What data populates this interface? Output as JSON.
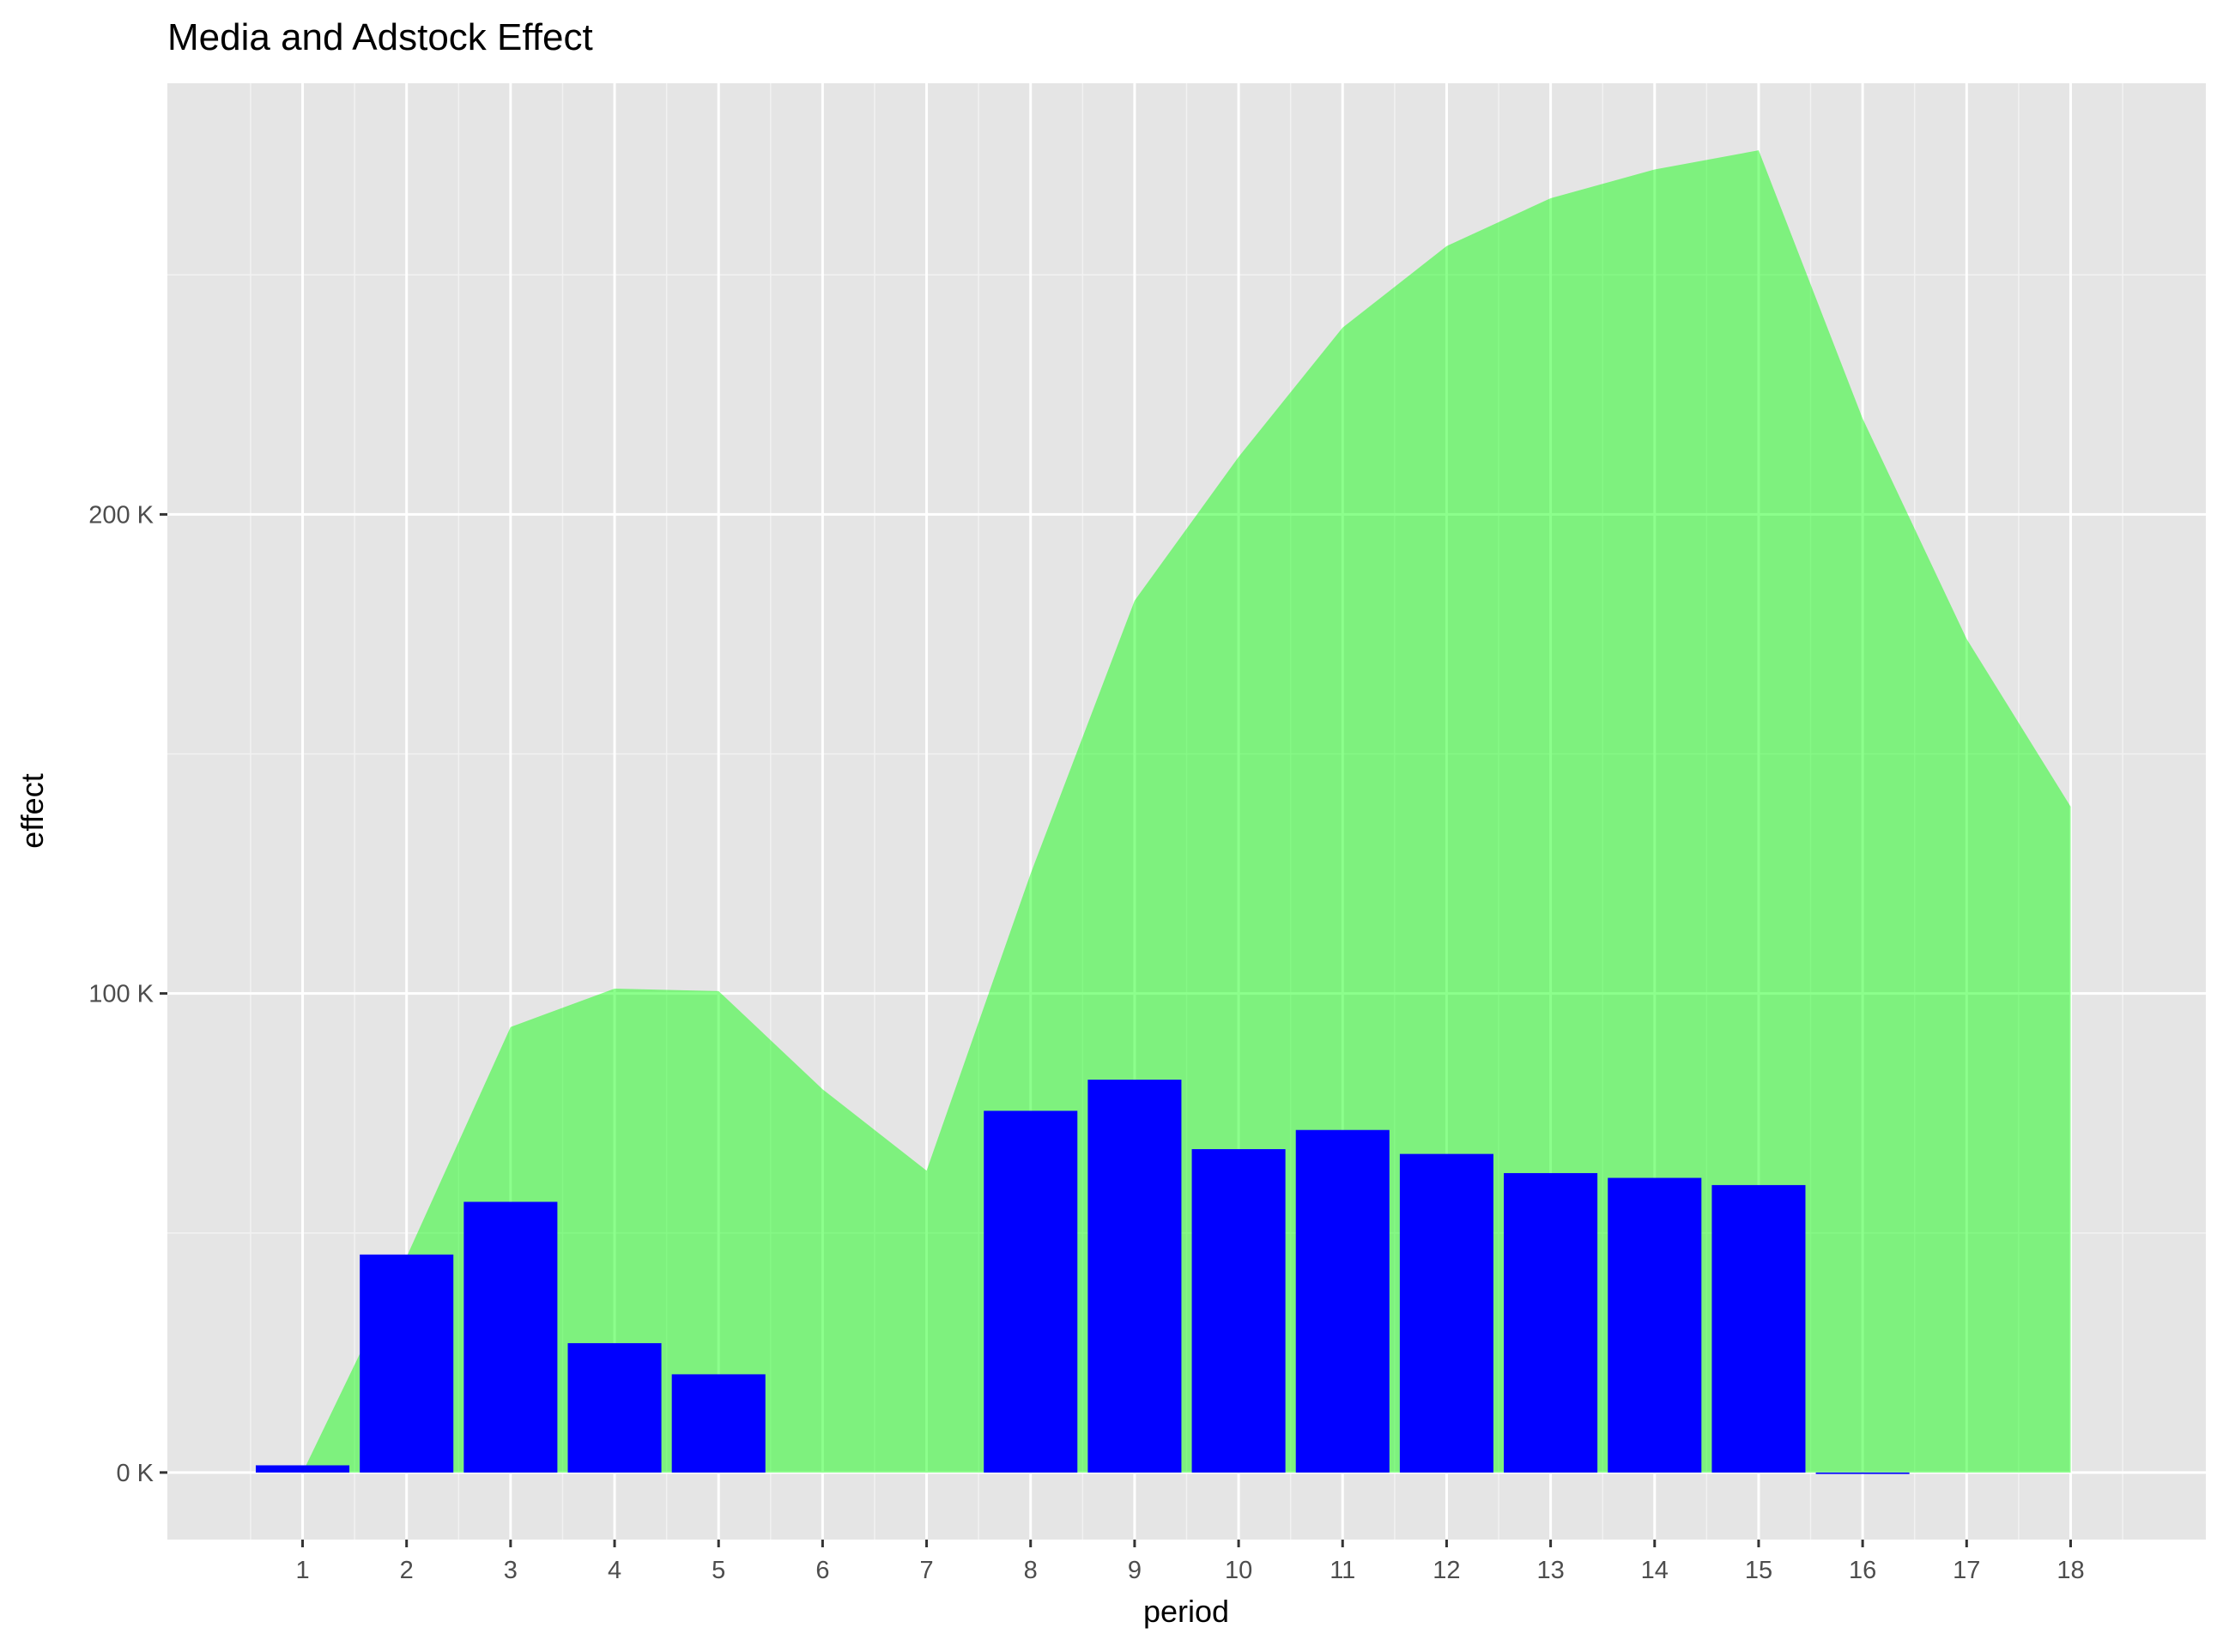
{
  "chart_data": {
    "type": "bar",
    "title": "Media and Adstock Effect",
    "xlabel": "period",
    "ylabel": "effect",
    "x": [
      1,
      2,
      3,
      4,
      5,
      6,
      7,
      8,
      9,
      10,
      11,
      12,
      13,
      14,
      15,
      16,
      17,
      18
    ],
    "x_tick_labels": [
      "1",
      "2",
      "3",
      "4",
      "5",
      "6",
      "7",
      "8",
      "9",
      "10",
      "11",
      "12",
      "13",
      "14",
      "15",
      "16",
      "17",
      "18"
    ],
    "xlim": [
      -0.3,
      19.3
    ],
    "ylim": [
      -14000,
      290000
    ],
    "y_ticks": [
      0,
      100000,
      200000
    ],
    "y_tick_labels": [
      "0 K",
      "100 K",
      "200 K"
    ],
    "grid": true,
    "legend": "none",
    "series": [
      {
        "type": "area",
        "color": "#00FF00",
        "opacity": 0.45,
        "values": [
          0,
          45000,
          93000,
          101000,
          100500,
          80000,
          63000,
          125000,
          182000,
          212000,
          239000,
          256000,
          266000,
          272000,
          276000,
          220000,
          174000,
          139000
        ]
      },
      {
        "type": "bar",
        "color": "#0000FF",
        "values": [
          1500,
          45500,
          56500,
          27000,
          20500,
          0,
          0,
          75500,
          82000,
          67500,
          71500,
          66500,
          62500,
          61500,
          60000,
          -300,
          0,
          0
        ]
      }
    ]
  }
}
